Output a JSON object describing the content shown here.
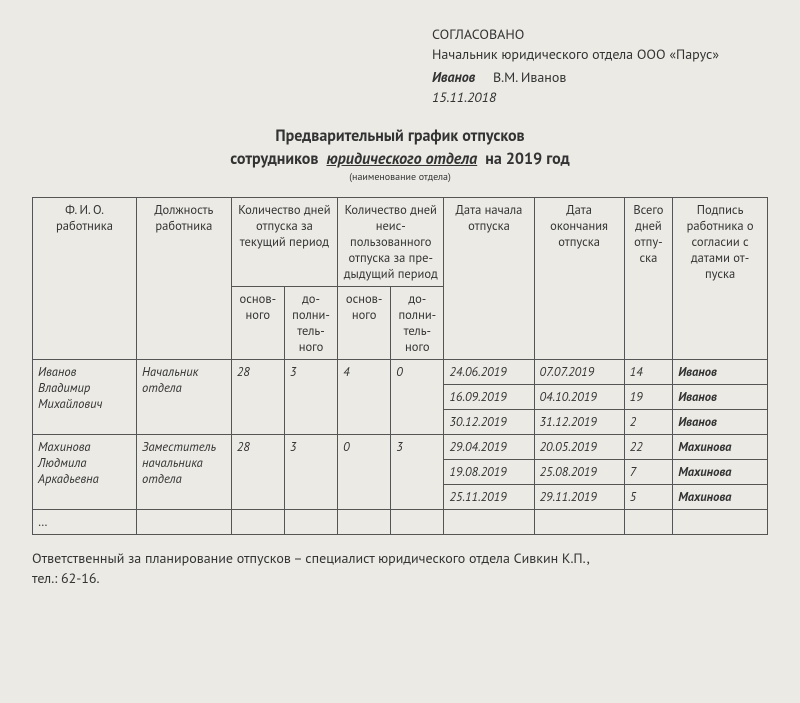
{
  "approval": {
    "heading": "СОГЛАСОВАНО",
    "position_line": "Начальник юридического отдела ООО «Парус»",
    "signature": "Иванов",
    "signer_full": "В.М. Иванов",
    "date": "15.11.2018"
  },
  "title": {
    "line1": "Предварительный график отпусков",
    "line2_prefix": "сотрудников",
    "department": "юридического отдела",
    "line2_suffix": "на 2019 год",
    "dept_caption": "(наименование отдела)"
  },
  "columns": {
    "name": "Ф. И. О. работника",
    "position": "Должность работника",
    "days_current": "Количество дней отпуска за текущий период",
    "days_prev": "Количество дней неис­пользованного отпуска за пре­дыдущий период",
    "start": "Дата начала отпуска",
    "end": "Дата окончания отпуска",
    "total": "Все­го дней отпу­ска",
    "sign": "Подпись работника о согласии с датами от­пуска",
    "main": "основ­ного",
    "extra": "до­полни­тель­ного"
  },
  "rows": {
    "r1": {
      "name": "Иванов Владимир Михайлович",
      "position": "Начальник отдела",
      "cur_main": "28",
      "cur_extra": "3",
      "prev_main": "4",
      "prev_extra": "0",
      "p1_start": "24.06.2019",
      "p1_end": "07.07.2019",
      "p1_total": "14",
      "p1_sig": "Иванов",
      "p2_start": "16.09.2019",
      "p2_end": "04.10.2019",
      "p2_total": "19",
      "p2_sig": "Иванов",
      "p3_start": "30.12.2019",
      "p3_end": "31.12.2019",
      "p3_total": "2",
      "p3_sig": "Иванов"
    },
    "r2": {
      "name": "Махинова Людмила Аркадьевна",
      "position": "Заме­ститель начальника отдела",
      "cur_main": "28",
      "cur_extra": "3",
      "prev_main": "0",
      "prev_extra": "3",
      "p1_start": "29.04.2019",
      "p1_end": "20.05.2019",
      "p1_total": "22",
      "p1_sig": "Махинова",
      "p2_start": "19.08.2019",
      "p2_end": "25.08.2019",
      "p2_total": "7",
      "p2_sig": "Махинова",
      "p3_start": "25.11.2019",
      "p3_end": "29.11.2019",
      "p3_total": "5",
      "p3_sig": "Махинова"
    },
    "ellipsis": "…"
  },
  "footer": {
    "line1": "Ответственный за планирование отпусков – специалист юридического отдела Сивкин К.П.,",
    "line2": "тел.: 62-16."
  },
  "style": {
    "background": "#ebeae5",
    "border_color": "#555555",
    "text_color": "#333333"
  }
}
